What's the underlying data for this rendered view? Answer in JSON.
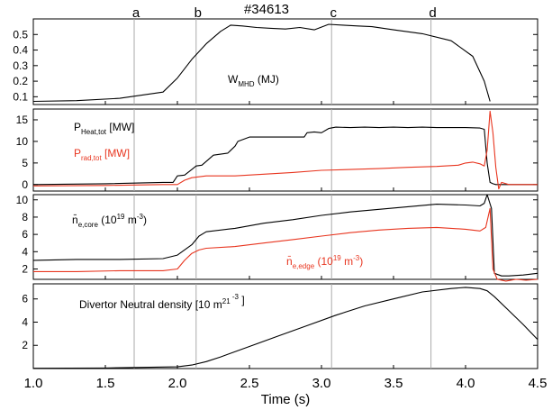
{
  "figure": {
    "shot_label": "#34613",
    "time_markers": [
      {
        "label": "a",
        "t": 1.7
      },
      {
        "label": "b",
        "t": 2.13
      },
      {
        "label": "c",
        "t": 3.07
      },
      {
        "label": "d",
        "t": 3.76
      }
    ],
    "x_axis": {
      "label": "Time (s)",
      "min": 1.0,
      "max": 4.5,
      "ticks": [
        "1.0",
        "1.5",
        "2.0",
        "2.5",
        "3.0",
        "3.5",
        "4.0",
        "4.5"
      ]
    }
  },
  "chart_data": [
    {
      "type": "line",
      "ylim": [
        0.05,
        0.6
      ],
      "yticks": [
        "0.1",
        "0.2",
        "0.3",
        "0.4",
        "0.5"
      ],
      "annotations": [
        {
          "main": "W",
          "sub": "MHD",
          "tail": " (MJ)"
        }
      ],
      "series": [
        {
          "color": "#000000",
          "x": [
            1.0,
            1.3,
            1.6,
            1.9,
            2.0,
            2.1,
            2.2,
            2.3,
            2.37,
            2.45,
            2.55,
            2.65,
            2.75,
            2.85,
            2.95,
            3.05,
            3.15,
            3.25,
            3.35,
            3.5,
            3.7,
            3.9,
            4.05,
            4.13,
            4.17
          ],
          "y": [
            0.07,
            0.075,
            0.09,
            0.13,
            0.22,
            0.34,
            0.44,
            0.52,
            0.56,
            0.555,
            0.545,
            0.54,
            0.535,
            0.545,
            0.53,
            0.565,
            0.56,
            0.555,
            0.55,
            0.53,
            0.505,
            0.46,
            0.36,
            0.2,
            0.07
          ]
        }
      ]
    },
    {
      "type": "line",
      "ylim": [
        -1.5,
        17.5
      ],
      "yticks": [
        "0",
        "5",
        "10",
        "15"
      ],
      "annotations": [
        {
          "main": "P",
          "sub": "Heat,tot",
          "tail": " [MW]",
          "color": "#000000"
        },
        {
          "main": "P",
          "sub": "rad,tot",
          "tail": " [MW]",
          "color": "#e8351f"
        }
      ],
      "series": [
        {
          "color": "#000000",
          "x": [
            1.0,
            1.5,
            1.9,
            1.97,
            2.0,
            2.05,
            2.1,
            2.13,
            2.17,
            2.25,
            2.35,
            2.4,
            2.42,
            2.5,
            2.6,
            2.7,
            2.8,
            2.88,
            2.9,
            2.95,
            3.0,
            3.05,
            3.1,
            3.2,
            3.3,
            3.4,
            3.5,
            3.6,
            3.7,
            3.8,
            3.9,
            4.0,
            4.1,
            4.13,
            4.15,
            4.17,
            4.19,
            4.21,
            4.5
          ],
          "y": [
            0,
            0.2,
            0.5,
            0.5,
            2.0,
            2.2,
            3.5,
            4.3,
            4.5,
            6.8,
            7.3,
            8.9,
            10.0,
            11.0,
            11.0,
            11.0,
            11.0,
            11.0,
            12.0,
            12.2,
            12.0,
            13.0,
            13.3,
            13.2,
            13.3,
            13.2,
            13.3,
            13.2,
            13.3,
            13.2,
            13.2,
            13.2,
            13.1,
            12.8,
            5.0,
            0.5,
            0.2,
            0,
            0
          ]
        },
        {
          "color": "#e8351f",
          "x": [
            1.0,
            1.5,
            1.9,
            2.0,
            2.05,
            2.1,
            2.15,
            2.2,
            2.4,
            2.6,
            2.8,
            3.0,
            3.2,
            3.4,
            3.6,
            3.8,
            3.95,
            4.0,
            4.05,
            4.1,
            4.13,
            4.15,
            4.17,
            4.19,
            4.21,
            4.23,
            4.25,
            4.3,
            4.5
          ],
          "y": [
            -0.3,
            -0.2,
            0,
            0,
            1.0,
            1.6,
            1.8,
            2.0,
            2.0,
            2.4,
            2.8,
            3.3,
            3.5,
            3.7,
            4.0,
            4.2,
            4.5,
            5.0,
            5.2,
            4.8,
            4.3,
            8.0,
            17.0,
            12.0,
            4.0,
            -1.0,
            0.5,
            0,
            0
          ]
        }
      ]
    },
    {
      "type": "line",
      "ylim": [
        0.8,
        10.6
      ],
      "yticks": [
        "2",
        "4",
        "6",
        "8",
        "10"
      ],
      "annotations": [
        {
          "main": "n̄",
          "sub": "e,core",
          "tail": "  (10",
          "sup": "19",
          "tail2": " m",
          "sup2": "-3",
          "tail3": ")",
          "color": "#000000"
        },
        {
          "main": "n̄",
          "sub": "e,edge",
          "tail": "  (10",
          "sup": "19",
          "tail2": " m",
          "sup2": "-3",
          "tail3": ")",
          "color": "#e8351f"
        }
      ],
      "series": [
        {
          "color": "#000000",
          "x": [
            1.0,
            1.3,
            1.6,
            1.9,
            2.0,
            2.1,
            2.15,
            2.2,
            2.4,
            2.6,
            2.8,
            3.0,
            3.2,
            3.4,
            3.6,
            3.8,
            4.0,
            4.1,
            4.13,
            4.15,
            4.18,
            4.2,
            4.25,
            4.3,
            4.4,
            4.5
          ],
          "y": [
            3.0,
            3.1,
            3.1,
            3.2,
            3.6,
            4.8,
            5.8,
            6.3,
            6.7,
            7.3,
            7.7,
            8.2,
            8.6,
            8.9,
            9.2,
            9.5,
            9.4,
            9.3,
            9.6,
            10.6,
            9.0,
            1.5,
            1.2,
            1.2,
            1.3,
            1.5
          ]
        },
        {
          "color": "#e8351f",
          "x": [
            1.0,
            1.3,
            1.6,
            1.9,
            2.0,
            2.05,
            2.1,
            2.15,
            2.2,
            2.4,
            2.6,
            2.8,
            3.0,
            3.2,
            3.4,
            3.6,
            3.8,
            4.0,
            4.1,
            4.14,
            4.17,
            4.19,
            4.22,
            4.28,
            4.35,
            4.42,
            4.5
          ],
          "y": [
            1.7,
            1.7,
            1.8,
            1.8,
            2.0,
            3.0,
            3.8,
            4.2,
            4.4,
            4.6,
            5.0,
            5.4,
            5.8,
            6.2,
            6.5,
            6.7,
            6.8,
            6.6,
            6.4,
            6.8,
            9.0,
            2.0,
            0.8,
            0.6,
            0.8,
            0.7,
            0.8
          ]
        }
      ]
    },
    {
      "type": "line",
      "ylim": [
        0,
        7.3
      ],
      "yticks": [
        "2",
        "4",
        "6"
      ],
      "annotations": [
        {
          "main": "Divertor Neutral density [10",
          "sup": "21",
          "tail": " m",
          "sup2": " -3",
          "tail3": " ]"
        }
      ],
      "series": [
        {
          "color": "#000000",
          "x": [
            1.0,
            1.5,
            2.0,
            2.1,
            2.2,
            2.3,
            2.5,
            2.7,
            2.9,
            3.1,
            3.3,
            3.5,
            3.7,
            3.9,
            4.0,
            4.1,
            4.15,
            4.2,
            4.3,
            4.4,
            4.5
          ],
          "y": [
            0.02,
            0.05,
            0.15,
            0.3,
            0.6,
            1.0,
            1.9,
            2.8,
            3.7,
            4.6,
            5.4,
            6.0,
            6.6,
            6.9,
            7.0,
            6.9,
            6.7,
            6.2,
            5.0,
            3.8,
            2.5
          ]
        }
      ]
    }
  ]
}
